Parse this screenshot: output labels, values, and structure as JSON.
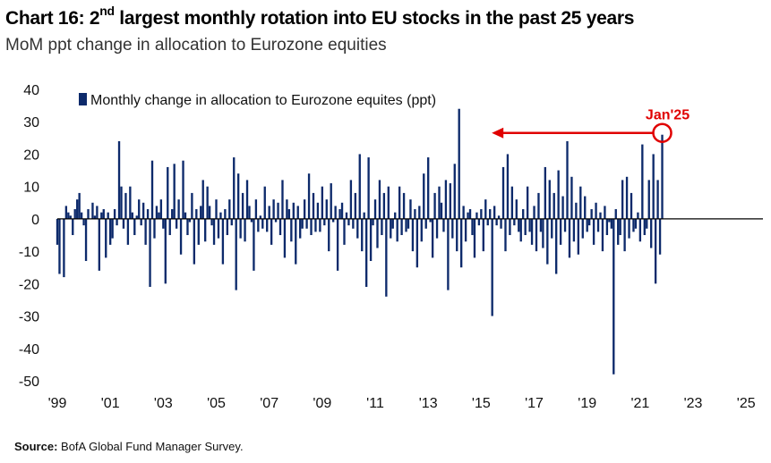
{
  "header": {
    "title_prefix": "Chart 16: 2",
    "title_sup": "nd",
    "title_suffix": " largest monthly rotation into EU stocks in the past 25 years",
    "subtitle": "MoM ppt change in allocation to Eurozone equities"
  },
  "footer": {
    "source_label": "Source:",
    "source_text": " BofA Global Fund Manager Survey."
  },
  "chart_data": {
    "type": "bar",
    "title": "Chart 16: 2nd largest monthly rotation into EU stocks in the past 25 years",
    "subtitle": "MoM ppt change in allocation to Eurozone equities",
    "ylim": [
      -50,
      40
    ],
    "yticks": [
      40,
      30,
      20,
      10,
      0,
      -10,
      -20,
      -30,
      -40,
      -50
    ],
    "xlim": [
      1999.0,
      2025.5
    ],
    "xticks": [
      {
        "label": "'99",
        "year": 1999
      },
      {
        "label": "'01",
        "year": 2001
      },
      {
        "label": "'03",
        "year": 2003
      },
      {
        "label": "'05",
        "year": 2005
      },
      {
        "label": "'07",
        "year": 2007
      },
      {
        "label": "'09",
        "year": 2009
      },
      {
        "label": "'11",
        "year": 2011
      },
      {
        "label": "'13",
        "year": 2013
      },
      {
        "label": "'15",
        "year": 2015
      },
      {
        "label": "'17",
        "year": 2017
      },
      {
        "label": "'19",
        "year": 2019
      },
      {
        "label": "'21",
        "year": 2021
      },
      {
        "label": "'23",
        "year": 2023
      },
      {
        "label": "'25",
        "year": 2025
      }
    ],
    "legend": {
      "position": "top-left",
      "label": "Monthly change in allocation to Eurozone equites (ppt)"
    },
    "grid": false,
    "bar_color": "#0d2a6b",
    "annotation": {
      "label": "Jan'25",
      "value": 26,
      "color": "#e00000",
      "arrow_to_value": 26
    },
    "series": [
      {
        "start": "1999-01",
        "frequency": "monthly",
        "values": [
          -8,
          -17,
          0,
          -18,
          4,
          2,
          1,
          -5,
          3,
          6,
          8,
          2,
          -2,
          -13,
          3,
          0,
          5,
          1,
          4,
          -16,
          2,
          3,
          -12,
          2,
          -8,
          -6,
          3,
          -2,
          24,
          10,
          -3,
          8,
          -8,
          10,
          2,
          -5,
          1,
          6,
          -2,
          5,
          -8,
          3,
          -21,
          18,
          -6,
          4,
          2,
          6,
          -3,
          -20,
          16,
          -5,
          3,
          17,
          -3,
          6,
          -11,
          18,
          2,
          -5,
          -1,
          8,
          -14,
          3,
          -8,
          4,
          12,
          -7,
          10,
          4,
          -2,
          -8,
          6,
          -6,
          2,
          -14,
          3,
          -5,
          6,
          -2,
          19,
          -22,
          14,
          -6,
          8,
          -7,
          12,
          4,
          -1,
          -16,
          6,
          -4,
          1,
          -3,
          10,
          -4,
          4,
          -8,
          6,
          -1,
          5,
          -5,
          12,
          -12,
          6,
          3,
          -7,
          5,
          -14,
          4,
          -6,
          -3,
          6,
          -3,
          14,
          -5,
          8,
          -4,
          5,
          -4,
          10,
          -2,
          6,
          -10,
          11,
          -1,
          4,
          -16,
          3,
          5,
          -8,
          2,
          -2,
          12,
          -3,
          8,
          -6,
          20,
          -10,
          2,
          -21,
          19,
          -13,
          -2,
          6,
          -9,
          12,
          -5,
          8,
          -24,
          10,
          -6,
          -3,
          2,
          -7,
          10,
          -5,
          8,
          -4,
          -3,
          6,
          -10,
          3,
          -15,
          4,
          -7,
          14,
          -3,
          19,
          -1,
          -12,
          8,
          -6,
          10,
          5,
          -4,
          12,
          -22,
          11,
          -6,
          17,
          -10,
          34,
          -15,
          4,
          -7,
          2,
          3,
          -5,
          -12,
          2,
          -2,
          3,
          -10,
          6,
          -2,
          3,
          -30,
          4,
          -2,
          1,
          -3,
          16,
          -10,
          20,
          -5,
          10,
          -2,
          6,
          -4,
          -7,
          3,
          -5,
          10,
          -4,
          -8,
          4,
          -10,
          8,
          -4,
          -9,
          16,
          -14,
          12,
          -6,
          8,
          -17,
          15,
          -8,
          7,
          -4,
          24,
          -12,
          13,
          -7,
          5,
          -11,
          10,
          -6,
          7,
          -4,
          -2,
          3,
          -8,
          5,
          -4,
          2,
          -10,
          4,
          -5,
          -1,
          -3,
          -48,
          3,
          -8,
          -5,
          12,
          -10,
          13,
          -6,
          8,
          -4,
          -3,
          2,
          -7,
          23,
          -5,
          -3,
          12,
          -9,
          20,
          -20,
          12,
          -11,
          26
        ]
      }
    ]
  }
}
